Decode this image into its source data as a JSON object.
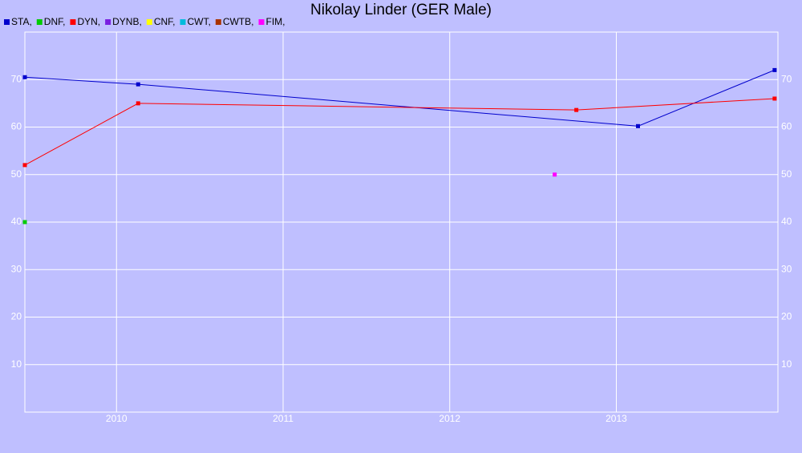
{
  "chart_data": {
    "type": "line",
    "title": "Nikolay Linder (GER Male)",
    "xlim": [
      2009.45,
      2013.97
    ],
    "xticks": [
      2010,
      2011,
      2012,
      2013
    ],
    "ylim": [
      0,
      80
    ],
    "yticks": [
      10,
      20,
      30,
      40,
      50,
      60,
      70
    ],
    "grid": true,
    "series": [
      {
        "name": "STA,",
        "color": "#0000cc",
        "x": [
          2009.45,
          2010.13,
          2013.13,
          2013.95
        ],
        "values": [
          70.5,
          69,
          60.2,
          72
        ]
      },
      {
        "name": "DNF,",
        "color": "#00cc00",
        "x": [
          2009.45
        ],
        "values": [
          40
        ]
      },
      {
        "name": "DYN,",
        "color": "#ff0000",
        "x": [
          2009.45,
          2010.13,
          2012.76,
          2013.95
        ],
        "values": [
          52,
          65,
          63.6,
          66
        ]
      },
      {
        "name": "DYNB,",
        "color": "#7a1fe0",
        "x": [],
        "values": []
      },
      {
        "name": "CNF,",
        "color": "#ffff00",
        "x": [],
        "values": []
      },
      {
        "name": "CWT,",
        "color": "#00bbdd",
        "x": [],
        "values": []
      },
      {
        "name": "CWTB,",
        "color": "#aa3300",
        "x": [],
        "values": []
      },
      {
        "name": "FIM,",
        "color": "#ff00ff",
        "x": [
          2012.63
        ],
        "values": [
          50
        ]
      }
    ]
  }
}
